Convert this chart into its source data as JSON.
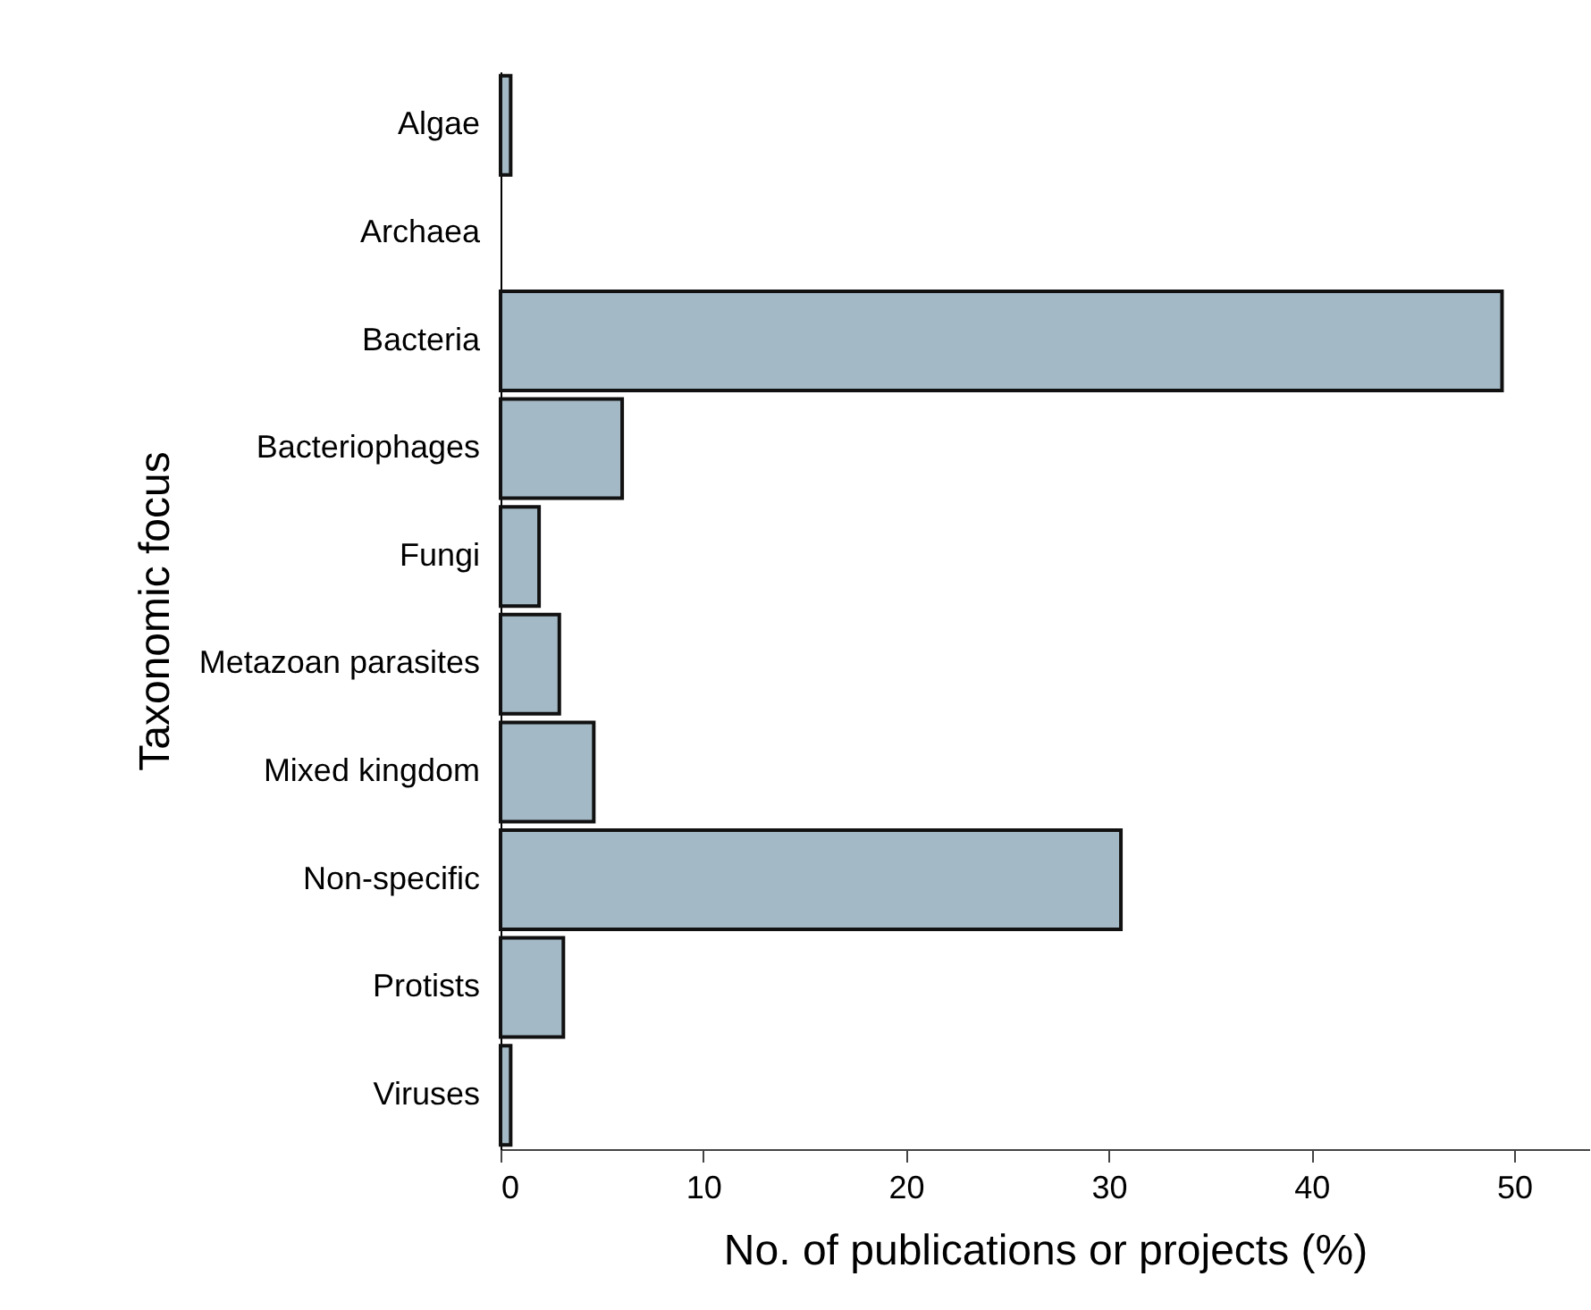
{
  "chart_data": {
    "type": "bar",
    "orientation": "horizontal",
    "xlabel": "No. of publications or projects (%)",
    "ylabel": "Taxonomic focus",
    "categories": [
      "Algae",
      "Archaea",
      "Bacteria",
      "Bacteriophages",
      "Fungi",
      "Metazoan parasites",
      "Mixed kingdom",
      "Non-specific",
      "Protists",
      "Viruses"
    ],
    "values": [
      0.5,
      0,
      49.4,
      6.0,
      1.9,
      2.9,
      4.6,
      30.6,
      3.1,
      0.5
    ],
    "color": "#a3b9c5",
    "xlim": [
      0,
      53.7
    ],
    "xticks": [
      0,
      10,
      20,
      30,
      40,
      50
    ],
    "grid": false
  }
}
